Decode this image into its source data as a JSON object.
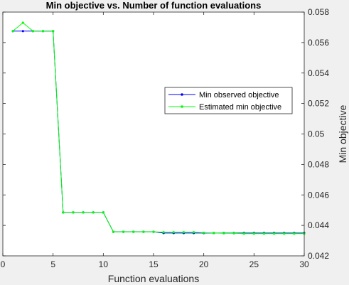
{
  "chart_data": {
    "type": "line",
    "title": "Min objective vs. Number of function evaluations",
    "xlabel": "Function evaluations",
    "ylabel": "Min objective",
    "xlim": [
      0,
      30
    ],
    "ylim": [
      0.042,
      0.058
    ],
    "x_ticks": [
      0,
      5,
      10,
      15,
      20,
      25,
      30
    ],
    "y_ticks": [
      0.042,
      0.044,
      0.046,
      0.048,
      0.05,
      0.052,
      0.054,
      0.056,
      0.058
    ],
    "y_tick_labels": [
      "0.042",
      "0.044",
      "0.046",
      "0.048",
      "0.05",
      "0.052",
      "0.054",
      "0.056",
      "0.058"
    ],
    "y_axis_side": "right",
    "grid": false,
    "legend_position": "top-right",
    "x": [
      1,
      2,
      3,
      4,
      5,
      6,
      7,
      8,
      9,
      10,
      11,
      12,
      13,
      14,
      15,
      16,
      17,
      18,
      19,
      20,
      21,
      22,
      23,
      24,
      25,
      26,
      27,
      28,
      29,
      30
    ],
    "series": [
      {
        "name": "Min observed objective",
        "color": "#0000ff",
        "values": [
          0.05675,
          0.05675,
          0.05675,
          0.05675,
          0.05675,
          0.04485,
          0.04485,
          0.04485,
          0.04485,
          0.04485,
          0.04358,
          0.04358,
          0.04358,
          0.04358,
          0.04358,
          0.0435,
          0.0435,
          0.0435,
          0.0435,
          0.0435,
          0.0435,
          0.0435,
          0.0435,
          0.0435,
          0.0435,
          0.0435,
          0.0435,
          0.0435,
          0.0435,
          0.0435
        ]
      },
      {
        "name": "Estimated min objective",
        "color": "#00ff00",
        "values": [
          0.05675,
          0.0573,
          0.05675,
          0.05675,
          0.05675,
          0.04485,
          0.04485,
          0.04485,
          0.04485,
          0.04485,
          0.04358,
          0.04358,
          0.04358,
          0.04358,
          0.04358,
          0.04355,
          0.04355,
          0.04355,
          0.04355,
          0.04352,
          0.0435,
          0.04348,
          0.04348,
          0.04346,
          0.04346,
          0.04346,
          0.04346,
          0.04346,
          0.04346,
          0.04346
        ]
      }
    ]
  }
}
